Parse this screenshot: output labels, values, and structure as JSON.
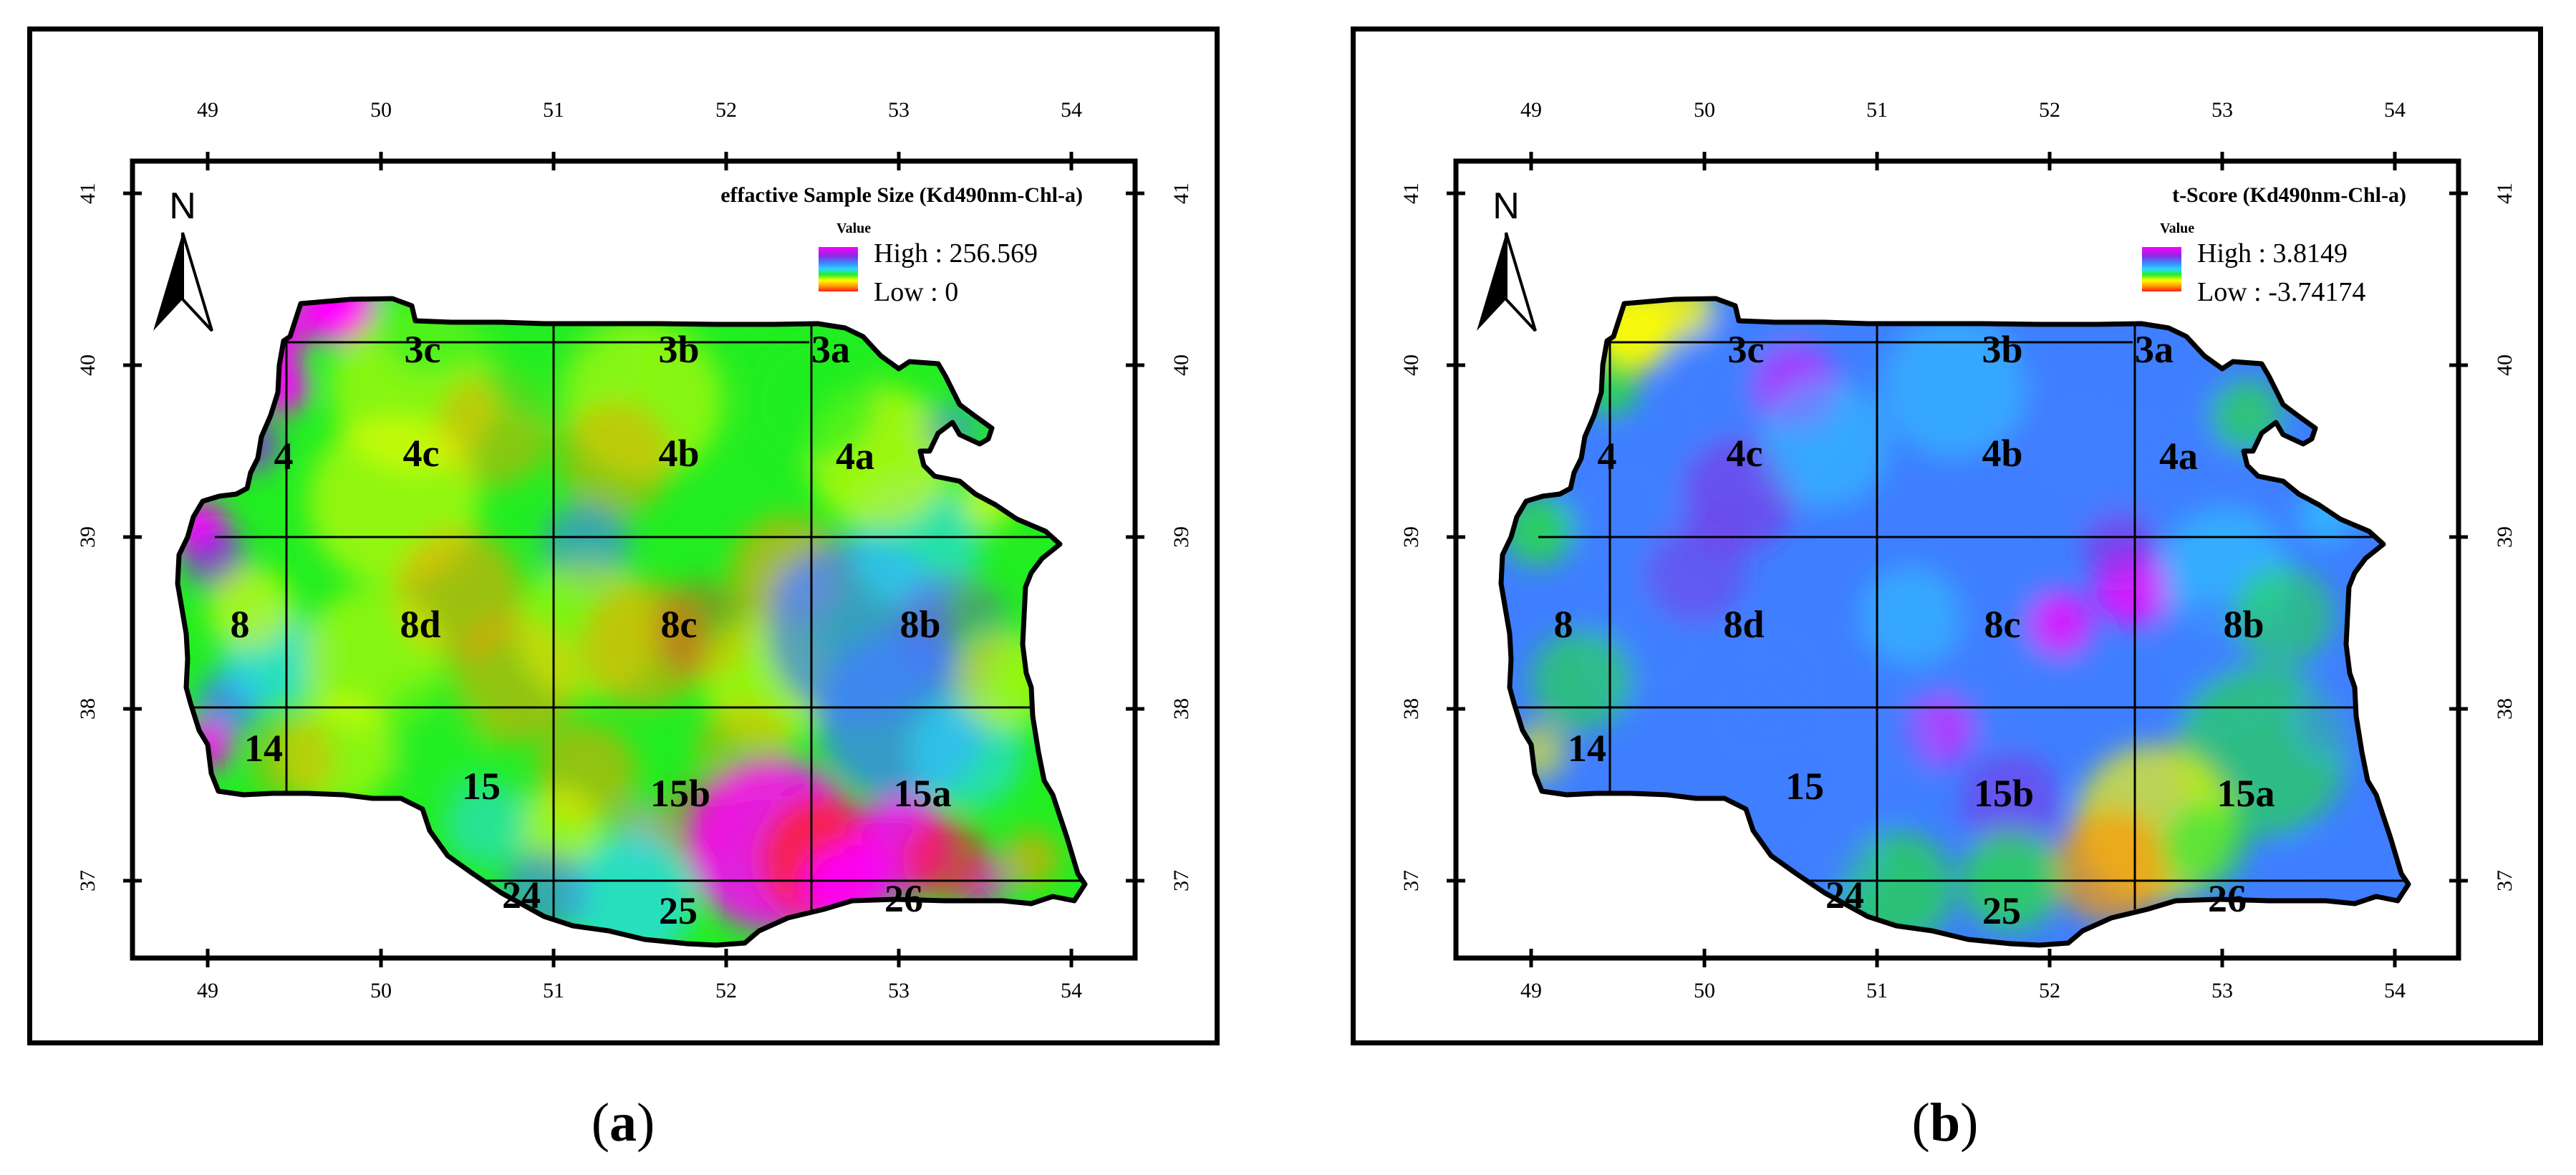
{
  "colors": {
    "high": "#ff00ff",
    "purple": "#8a2be2",
    "blue": "#3f7fff",
    "cyan": "#2ad9ff",
    "green": "#22ee22",
    "yellow": "#ffff00",
    "orange": "#ff9a00",
    "red": "#ff1a1a",
    "gray": "#aaaaaa",
    "black": "#000000"
  },
  "icons": {
    "north_arrow": "north-arrow-icon"
  },
  "panels": [
    {
      "id": "a",
      "caption_open": "(",
      "caption_letter": "a",
      "caption_close": ")",
      "title": "effactive Sample Size (Kd490nm-Chl-a)",
      "legend": {
        "header": "Value",
        "high": "High : 256.569",
        "low": "Low : 0"
      },
      "north_label": "N",
      "x_ticks": [
        "49",
        "50",
        "51",
        "52",
        "53",
        "54"
      ],
      "y_ticks": [
        "41",
        "40",
        "39",
        "38",
        "37"
      ],
      "regions": [
        "3c",
        "3b",
        "3a",
        "4",
        "4c",
        "4b",
        "4a",
        "8",
        "8d",
        "8c",
        "8b",
        "14",
        "15",
        "15b",
        "15a",
        "24",
        "25",
        "26"
      ],
      "dominant_fill": "green"
    },
    {
      "id": "b",
      "caption_open": "(",
      "caption_letter": "b",
      "caption_close": ")",
      "title": "t-Score (Kd490nm-Chl-a)",
      "legend": {
        "header": "Value",
        "high": "High : 3.8149",
        "low": "Low : -3.74174"
      },
      "north_label": "N",
      "x_ticks": [
        "49",
        "50",
        "51",
        "52",
        "53",
        "54"
      ],
      "y_ticks": [
        "41",
        "40",
        "39",
        "38",
        "37"
      ],
      "regions": [
        "3c",
        "3b",
        "3a",
        "4",
        "4c",
        "4b",
        "4a",
        "8",
        "8d",
        "8c",
        "8b",
        "14",
        "15",
        "15b",
        "15a",
        "24",
        "25",
        "26"
      ],
      "dominant_fill": "blue"
    }
  ]
}
